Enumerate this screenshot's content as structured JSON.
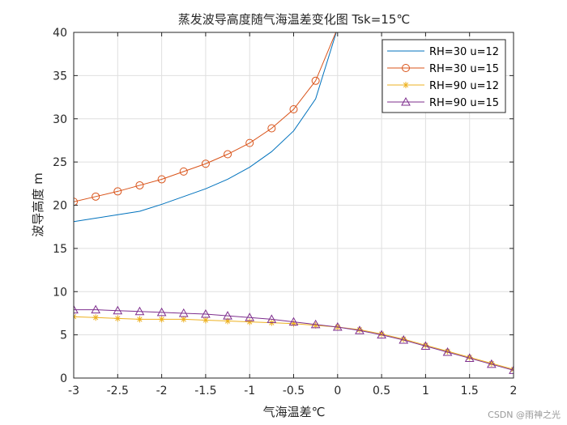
{
  "chart_data": {
    "type": "line",
    "title": "蒸发波导高度随气海温差变化图 Tsk=15℃",
    "xlabel": "气海温差℃",
    "ylabel": "波导高度 m",
    "xlim": [
      -3,
      2
    ],
    "ylim": [
      0,
      40
    ],
    "xticks": [
      -3,
      -2.5,
      -2,
      -1.5,
      -1,
      -0.5,
      0,
      0.5,
      1,
      1.5,
      2
    ],
    "yticks": [
      0,
      5,
      10,
      15,
      20,
      25,
      30,
      35,
      40
    ],
    "xtick_labels": [
      "-3",
      "-2.5",
      "-2",
      "-1.5",
      "-1",
      "-0.5",
      "0",
      "0.5",
      "1",
      "1.5",
      "2"
    ],
    "ytick_labels": [
      "0",
      "5",
      "10",
      "15",
      "20",
      "25",
      "30",
      "35",
      "40"
    ],
    "grid": true,
    "legend_position": "top-right",
    "series": [
      {
        "name": "RH=30 u=12",
        "color": "#0072BD",
        "marker": "none",
        "x": [
          -3,
          -2.75,
          -2.5,
          -2.25,
          -2,
          -1.75,
          -1.5,
          -1.25,
          -1,
          -0.75,
          -0.5,
          -0.25,
          0
        ],
        "y": [
          18.1,
          18.5,
          18.9,
          19.3,
          20.1,
          21.0,
          21.9,
          23.0,
          24.4,
          26.2,
          28.6,
          32.3,
          40.5
        ]
      },
      {
        "name": "RH=30 u=15",
        "color": "#D95319",
        "marker": "circle",
        "x": [
          -3,
          -2.75,
          -2.5,
          -2.25,
          -2,
          -1.75,
          -1.5,
          -1.25,
          -1,
          -0.75,
          -0.5,
          -0.25,
          0
        ],
        "y": [
          20.4,
          21.0,
          21.6,
          22.3,
          23.0,
          23.9,
          24.8,
          25.9,
          27.2,
          28.9,
          31.1,
          34.4,
          40.5
        ]
      },
      {
        "name": "RH=90 u=12",
        "color": "#EDB120",
        "marker": "asterisk",
        "x": [
          -3,
          -2.75,
          -2.5,
          -2.25,
          -2,
          -1.75,
          -1.5,
          -1.25,
          -1,
          -0.75,
          -0.5,
          -0.25,
          0,
          0.25,
          0.5,
          0.75,
          1,
          1.25,
          1.5,
          1.75,
          2
        ],
        "y": [
          7.1,
          7.0,
          6.9,
          6.8,
          6.8,
          6.8,
          6.7,
          6.6,
          6.5,
          6.4,
          6.3,
          6.1,
          5.9,
          5.6,
          5.1,
          4.5,
          3.8,
          3.1,
          2.4,
          1.7,
          1.0
        ]
      },
      {
        "name": "RH=90 u=15",
        "color": "#7E2F8E",
        "marker": "triangle",
        "x": [
          -3,
          -2.75,
          -2.5,
          -2.25,
          -2,
          -1.75,
          -1.5,
          -1.25,
          -1,
          -0.75,
          -0.5,
          -0.25,
          0,
          0.25,
          0.5,
          0.75,
          1,
          1.25,
          1.5,
          1.75,
          2
        ],
        "y": [
          7.9,
          7.9,
          7.8,
          7.7,
          7.6,
          7.5,
          7.4,
          7.2,
          7.0,
          6.8,
          6.5,
          6.2,
          5.9,
          5.5,
          5.0,
          4.4,
          3.7,
          3.0,
          2.3,
          1.6,
          0.9
        ]
      }
    ]
  },
  "watermark": "CSDN @雨神之光"
}
